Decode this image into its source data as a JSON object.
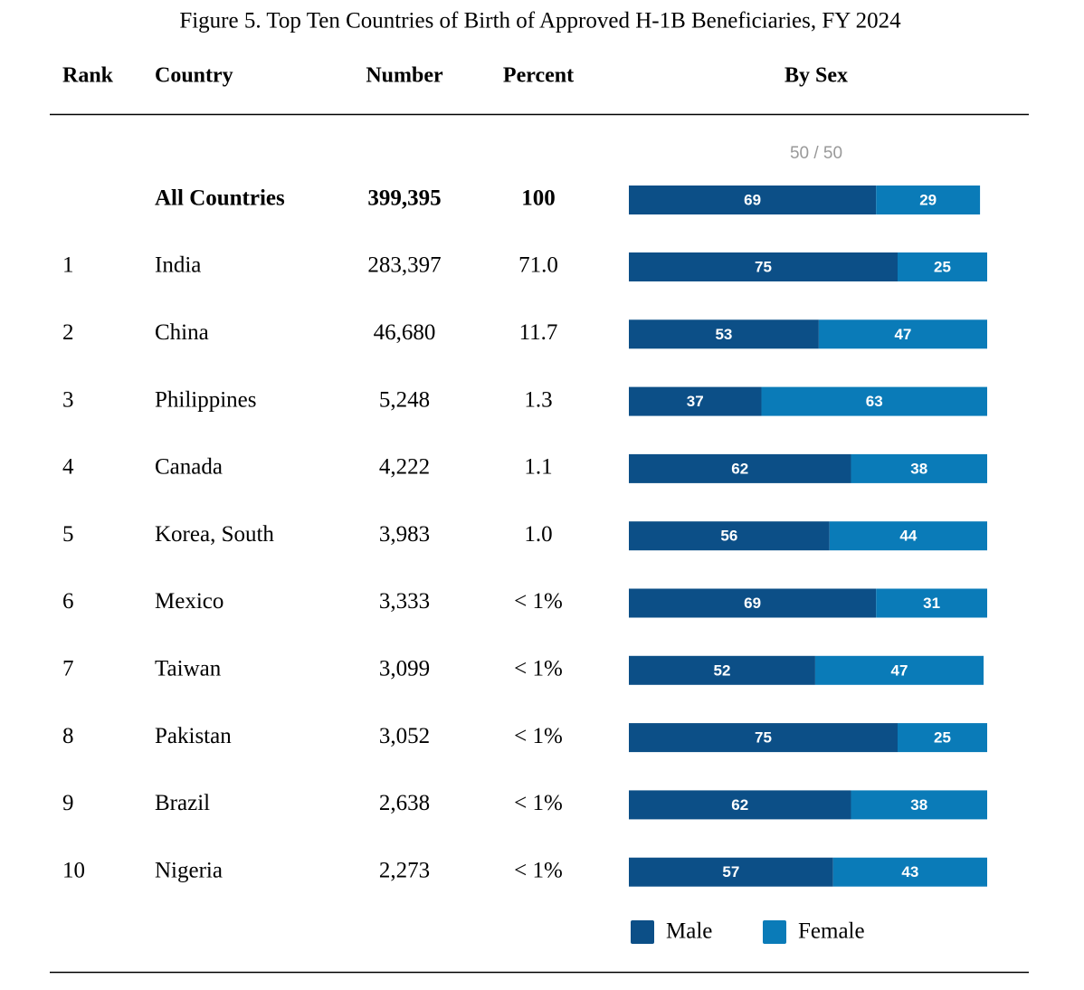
{
  "title": "Figure 5. Top Ten Countries of Birth of Approved H-1B Beneficiaries, FY 2024",
  "headers": [
    "Rank",
    "Country",
    "Number",
    "Percent",
    "By Sex"
  ],
  "scale_label": "50 / 50",
  "total": {
    "country": "All Countries",
    "number": "399,395",
    "percent": "100",
    "male": 69,
    "female": 29
  },
  "rows": [
    {
      "rank": "1",
      "country": "India",
      "number": "283,397",
      "percent": "71.0",
      "male": 75,
      "female": 25
    },
    {
      "rank": "2",
      "country": "China",
      "number": "46,680",
      "percent": "11.7",
      "male": 53,
      "female": 47
    },
    {
      "rank": "3",
      "country": "Philippines",
      "number": "5,248",
      "percent": "1.3",
      "male": 37,
      "female": 63
    },
    {
      "rank": "4",
      "country": "Canada",
      "number": "4,222",
      "percent": "1.1",
      "male": 62,
      "female": 38
    },
    {
      "rank": "5",
      "country": "Korea, South",
      "number": "3,983",
      "percent": "1.0",
      "male": 56,
      "female": 44
    },
    {
      "rank": "6",
      "country": "Mexico",
      "number": "3,333",
      "percent": "< 1%",
      "male": 69,
      "female": 31
    },
    {
      "rank": "7",
      "country": "Taiwan",
      "number": "3,099",
      "percent": "< 1%",
      "male": 52,
      "female": 47
    },
    {
      "rank": "8",
      "country": "Pakistan",
      "number": "3,052",
      "percent": "< 1%",
      "male": 75,
      "female": 25
    },
    {
      "rank": "9",
      "country": "Brazil",
      "number": "2,638",
      "percent": "< 1%",
      "male": 62,
      "female": 38
    },
    {
      "rank": "10",
      "country": "Nigeria",
      "number": "2,273",
      "percent": "< 1%",
      "male": 57,
      "female": 43
    }
  ],
  "legend": [
    {
      "name": "Male",
      "color": "#0c4f87"
    },
    {
      "name": "Female",
      "color": "#0a7bb8"
    }
  ]
}
